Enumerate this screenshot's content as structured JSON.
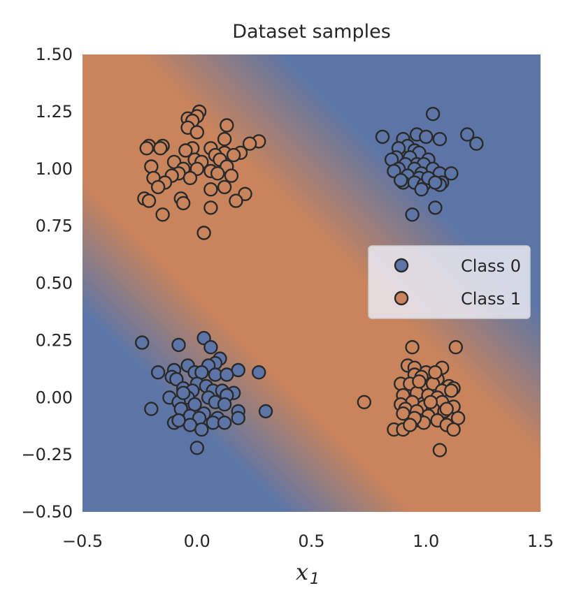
{
  "chart_data": {
    "type": "scatter",
    "title": "Dataset samples",
    "xlabel": "x",
    "xlabel_subscript": "1",
    "ylabel": "",
    "xlim": [
      -0.5,
      1.5
    ],
    "ylim": [
      -0.5,
      1.5
    ],
    "x_ticks": [
      "−0.5",
      "0.0",
      "0.5",
      "1.0",
      "1.5"
    ],
    "y_ticks": [
      "1.50",
      "1.25",
      "1.00",
      "0.75",
      "0.50",
      "0.25",
      "0.00",
      "−0.25",
      "−0.50"
    ],
    "grid": false,
    "legend": {
      "placement": "right",
      "entries": [
        "Class 0",
        "Class 1"
      ]
    },
    "background": "decision boundary gradient: Class 0 color in lower-left and upper-right, Class 1 color along the anti-diagonal band",
    "colors": {
      "class0": "#5c75a6",
      "class1": "#c9845c"
    },
    "series": [
      {
        "name": "Class 0",
        "color": "#5c75a6",
        "points": [
          [
            -0.24,
            0.24
          ],
          [
            -0.08,
            0.23
          ],
          [
            0.03,
            0.26
          ],
          [
            0.06,
            0.22
          ],
          [
            0.1,
            0.17
          ],
          [
            0.08,
            0.15
          ],
          [
            -0.04,
            0.14
          ],
          [
            0.05,
            0.14
          ],
          [
            -0.1,
            0.12
          ],
          [
            0.18,
            0.12
          ],
          [
            0.27,
            0.11
          ],
          [
            -0.17,
            0.11
          ],
          [
            -0.01,
            0.11
          ],
          [
            0.02,
            0.11
          ],
          [
            0.08,
            0.1
          ],
          [
            -0.11,
            0.09
          ],
          [
            0.13,
            0.1
          ],
          [
            -0.09,
            0.08
          ],
          [
            0.0,
            0.06
          ],
          [
            0.04,
            0.05
          ],
          [
            -0.06,
            0.04
          ],
          [
            0.07,
            0.03
          ],
          [
            -0.02,
            0.03
          ],
          [
            0.11,
            0.03
          ],
          [
            0.16,
            0.02
          ],
          [
            -0.12,
            0.0
          ],
          [
            -0.04,
            0.0
          ],
          [
            0.05,
            0.0
          ],
          [
            0.13,
            0.01
          ],
          [
            0.08,
            -0.02
          ],
          [
            -0.08,
            -0.02
          ],
          [
            -0.01,
            -0.03
          ],
          [
            0.12,
            -0.03
          ],
          [
            -0.2,
            -0.05
          ],
          [
            -0.07,
            -0.05
          ],
          [
            0.18,
            -0.06
          ],
          [
            0.3,
            -0.06
          ],
          [
            0.03,
            -0.07
          ],
          [
            -0.03,
            -0.08
          ],
          [
            0.01,
            -0.09
          ],
          [
            0.09,
            -0.09
          ],
          [
            0.18,
            -0.09
          ],
          [
            -0.1,
            -0.11
          ],
          [
            0.07,
            -0.11
          ],
          [
            0.12,
            -0.11
          ],
          [
            -0.03,
            -0.12
          ],
          [
            -0.08,
            -0.1
          ],
          [
            0.02,
            -0.14
          ],
          [
            0.0,
            -0.22
          ],
          [
            -0.06,
            0.02
          ],
          [
            1.03,
            1.24
          ],
          [
            0.81,
            1.14
          ],
          [
            0.96,
            1.15
          ],
          [
            1.0,
            1.14
          ],
          [
            1.06,
            1.13
          ],
          [
            1.18,
            1.15
          ],
          [
            1.22,
            1.11
          ],
          [
            0.9,
            1.13
          ],
          [
            0.92,
            1.1
          ],
          [
            0.88,
            1.09
          ],
          [
            0.95,
            1.08
          ],
          [
            0.97,
            1.07
          ],
          [
            0.87,
            1.05
          ],
          [
            0.93,
            1.05
          ],
          [
            1.01,
            1.04
          ],
          [
            0.85,
            1.04
          ],
          [
            0.96,
            1.02
          ],
          [
            0.99,
            1.02
          ],
          [
            0.91,
            1.02
          ],
          [
            0.88,
            1.0
          ],
          [
            1.03,
            1.0
          ],
          [
            0.95,
            1.0
          ],
          [
            0.86,
            0.99
          ],
          [
            0.98,
            0.98
          ],
          [
            1.06,
            0.98
          ],
          [
            1.11,
            0.98
          ],
          [
            0.92,
            0.97
          ],
          [
            0.97,
            0.96
          ],
          [
            1.02,
            0.95
          ],
          [
            1.07,
            0.94
          ],
          [
            0.9,
            0.94
          ],
          [
            0.95,
            0.94
          ],
          [
            0.99,
            0.93
          ],
          [
            1.06,
            0.93
          ],
          [
            0.94,
            0.8
          ],
          [
            1.04,
            0.83
          ],
          [
            0.98,
            0.91
          ],
          [
            1.01,
            0.96
          ],
          [
            0.89,
            0.95
          ],
          [
            1.04,
            0.94
          ]
        ]
      },
      {
        "name": "Class 1",
        "color": "#c9845c",
        "points": [
          [
            0.01,
            1.25
          ],
          [
            0.01,
            1.25
          ],
          [
            -0.04,
            1.22
          ],
          [
            0.0,
            1.23
          ],
          [
            -0.02,
            1.21
          ],
          [
            0.13,
            1.19
          ],
          [
            -0.04,
            1.18
          ],
          [
            0.0,
            1.16
          ],
          [
            0.12,
            1.13
          ],
          [
            0.27,
            1.12
          ],
          [
            0.23,
            1.11
          ],
          [
            -0.21,
            1.1
          ],
          [
            -0.15,
            1.1
          ],
          [
            -0.22,
            1.09
          ],
          [
            -0.16,
            1.09
          ],
          [
            0.06,
            1.09
          ],
          [
            -0.02,
            1.09
          ],
          [
            0.12,
            1.07
          ],
          [
            0.19,
            1.07
          ],
          [
            -0.05,
            1.08
          ],
          [
            0.08,
            1.06
          ],
          [
            0.16,
            1.06
          ],
          [
            -0.01,
            1.04
          ],
          [
            0.1,
            1.04
          ],
          [
            0.02,
            1.03
          ],
          [
            -0.1,
            1.03
          ],
          [
            0.13,
            1.01
          ],
          [
            -0.2,
            1.01
          ],
          [
            -0.06,
            1.0
          ],
          [
            0.0,
            1.0
          ],
          [
            0.06,
            0.99
          ],
          [
            -0.08,
            0.98
          ],
          [
            0.09,
            0.98
          ],
          [
            -0.11,
            0.97
          ],
          [
            0.15,
            0.97
          ],
          [
            -0.19,
            0.96
          ],
          [
            -0.03,
            0.96
          ],
          [
            -0.14,
            0.94
          ],
          [
            0.12,
            0.92
          ],
          [
            -0.17,
            0.92
          ],
          [
            0.06,
            0.91
          ],
          [
            0.21,
            0.89
          ],
          [
            -0.07,
            0.87
          ],
          [
            -0.23,
            0.87
          ],
          [
            -0.21,
            0.86
          ],
          [
            -0.06,
            0.85
          ],
          [
            0.17,
            0.86
          ],
          [
            0.06,
            0.83
          ],
          [
            -0.15,
            0.8
          ],
          [
            0.03,
            0.72
          ],
          [
            0.94,
            0.22
          ],
          [
            1.13,
            0.22
          ],
          [
            0.92,
            0.14
          ],
          [
            0.95,
            0.13
          ],
          [
            1.07,
            0.13
          ],
          [
            1.0,
            0.11
          ],
          [
            0.95,
            0.1
          ],
          [
            0.98,
            0.09
          ],
          [
            1.05,
            0.08
          ],
          [
            0.89,
            0.06
          ],
          [
            1.1,
            0.05
          ],
          [
            0.93,
            0.06
          ],
          [
            0.99,
            0.05
          ],
          [
            1.03,
            0.06
          ],
          [
            1.12,
            0.04
          ],
          [
            0.96,
            0.02
          ],
          [
            1.07,
            0.03
          ],
          [
            1.11,
            0.03
          ],
          [
            0.9,
            0.01
          ],
          [
            1.01,
            0.01
          ],
          [
            1.05,
            0.0
          ],
          [
            0.94,
            -0.02
          ],
          [
            1.07,
            -0.02
          ],
          [
            0.73,
            -0.02
          ],
          [
            0.89,
            -0.03
          ],
          [
            0.99,
            -0.04
          ],
          [
            1.03,
            -0.05
          ],
          [
            1.12,
            -0.04
          ],
          [
            0.91,
            -0.05
          ],
          [
            0.96,
            -0.06
          ],
          [
            1.08,
            -0.06
          ],
          [
            0.9,
            -0.07
          ],
          [
            1.01,
            -0.08
          ],
          [
            1.14,
            -0.09
          ],
          [
            0.97,
            -0.1
          ],
          [
            1.05,
            -0.1
          ],
          [
            0.99,
            -0.11
          ],
          [
            1.09,
            -0.12
          ],
          [
            0.86,
            -0.14
          ],
          [
            0.9,
            -0.14
          ],
          [
            1.12,
            -0.14
          ],
          [
            1.06,
            -0.23
          ],
          [
            0.95,
            -0.09
          ],
          [
            1.02,
            -0.02
          ],
          [
            0.97,
            0.07
          ],
          [
            1.04,
            0.11
          ],
          [
            0.93,
            -0.12
          ],
          [
            1.09,
            -0.05
          ]
        ]
      }
    ]
  }
}
